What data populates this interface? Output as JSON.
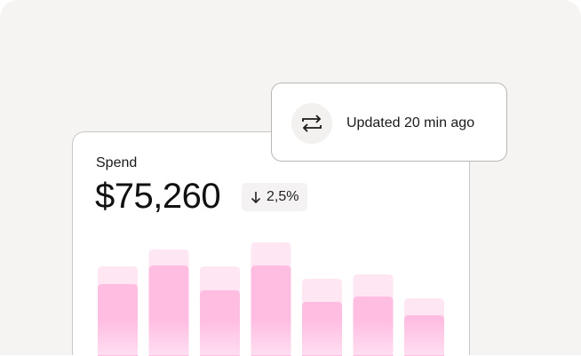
{
  "card": {
    "label": "Spend",
    "amount": "$75,260",
    "change": "2,5%",
    "change_icon": "arrow-down-icon"
  },
  "status": {
    "icon": "repeat-icon",
    "text": "Updated 20 min ago"
  },
  "chart_data": {
    "type": "bar",
    "stacked_overlay": true,
    "series": [
      {
        "values": [
          101,
          120,
          101,
          128,
          87,
          92,
          65
        ],
        "color": "#ffe6f3"
      },
      {
        "values": [
          81,
          102,
          74,
          102,
          61,
          67,
          46
        ],
        "color": "#ffbde2"
      }
    ],
    "axes_visible": false,
    "grid": false
  }
}
